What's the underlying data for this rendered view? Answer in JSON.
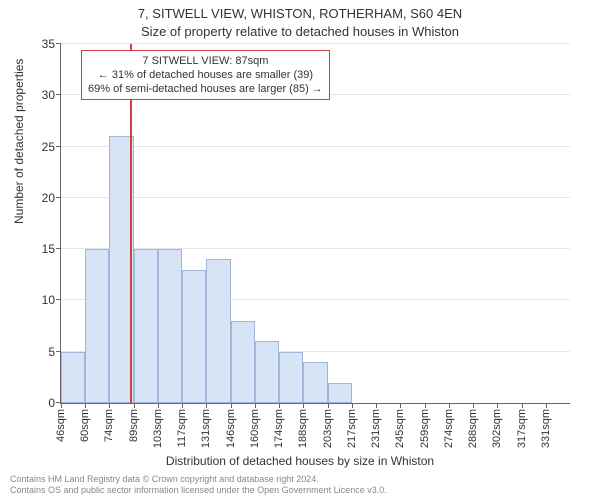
{
  "title_main": "7, SITWELL VIEW, WHISTON, ROTHERHAM, S60 4EN",
  "title_sub": "Size of property relative to detached houses in Whiston",
  "chart": {
    "type": "histogram",
    "y_label": "Number of detached properties",
    "x_label": "Distribution of detached houses by size in Whiston",
    "ylim": [
      0,
      35
    ],
    "ytick_step": 5,
    "grid_color": "#e5e5e5",
    "axis_color": "#666666",
    "background_color": "#ffffff",
    "bar_fill": "#d6e4f5",
    "bar_border": "#9fb8d9",
    "bar_width_ratio": 1.0,
    "x_categories_full": [
      "46sqm",
      "60sqm",
      "74sqm",
      "89sqm",
      "103sqm",
      "117sqm",
      "131sqm",
      "146sqm",
      "160sqm",
      "174sqm",
      "188sqm",
      "203sqm",
      "217sqm",
      "231sqm",
      "245sqm",
      "259sqm",
      "274sqm",
      "288sqm",
      "302sqm",
      "317sqm",
      "331sqm"
    ],
    "bars": [
      {
        "x_start": 46,
        "x_end": 60,
        "value": 5
      },
      {
        "x_start": 60,
        "x_end": 74,
        "value": 15
      },
      {
        "x_start": 74,
        "x_end": 89,
        "value": 26
      },
      {
        "x_start": 89,
        "x_end": 103,
        "value": 15
      },
      {
        "x_start": 103,
        "x_end": 117,
        "value": 15
      },
      {
        "x_start": 117,
        "x_end": 131,
        "value": 13
      },
      {
        "x_start": 131,
        "x_end": 146,
        "value": 14
      },
      {
        "x_start": 146,
        "x_end": 160,
        "value": 8
      },
      {
        "x_start": 160,
        "x_end": 174,
        "value": 6
      },
      {
        "x_start": 174,
        "x_end": 188,
        "value": 5
      },
      {
        "x_start": 188,
        "x_end": 203,
        "value": 4
      },
      {
        "x_start": 203,
        "x_end": 217,
        "value": 2
      }
    ],
    "reference_line": {
      "value_sqm": 87,
      "color": "#d04040"
    },
    "annotation": {
      "border_color": "#d04040",
      "lines": [
        "7 SITWELL VIEW: 87sqm",
        "← 31% of detached houses are smaller (39)",
        "69% of semi-detached houses are larger (85) →"
      ]
    },
    "label_fontsize": 12,
    "tick_fontsize": 11
  },
  "footnote": {
    "line1": "Contains HM Land Registry data © Crown copyright and database right 2024.",
    "line2": "Contains OS and public sector information licensed under the Open Government Licence v3.0."
  }
}
